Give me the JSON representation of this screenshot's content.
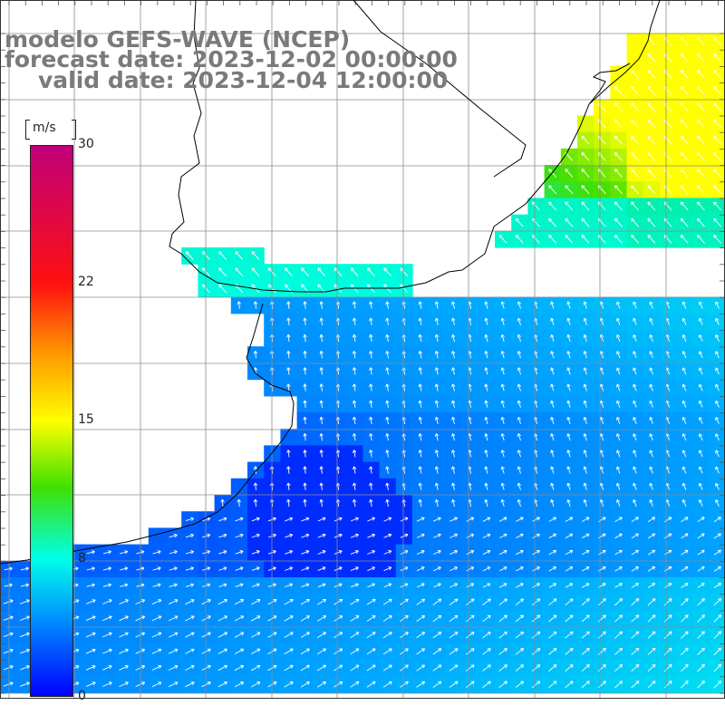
{
  "title": {
    "line1": "modelo GEFS-WAVE (NCEP)",
    "line2": "forecast date: 2023-12-02 00:00:00",
    "line3": "valid date: 2023-12-04 12:00:00"
  },
  "colorbar": {
    "unit": "m/s",
    "min": 0,
    "max": 30,
    "ticks": [
      "30",
      "22",
      "15",
      "8",
      "0"
    ],
    "tick_values": [
      30,
      22,
      15,
      8,
      0
    ],
    "colors": [
      "#0000ff",
      "#0090ff",
      "#00ffe8",
      "#40e000",
      "#ffff00",
      "#ff9a00",
      "#ff1010",
      "#c0007a"
    ]
  },
  "land_color": "#ffffff",
  "grid_color": "#8c8c8c",
  "coast_color": "#000000",
  "arrow_color": "#ffffff"
}
